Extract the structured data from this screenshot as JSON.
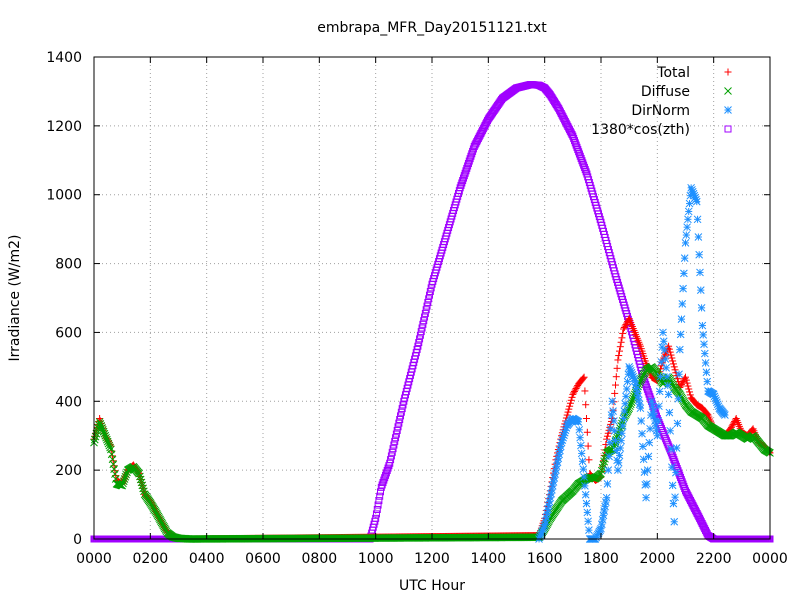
{
  "chart_data": {
    "type": "scatter",
    "title": "embrapa_MFR_Day20151121.txt",
    "xlabel": "UTC Hour",
    "ylabel": "Irradiance (W/m2)",
    "xlim": [
      0,
      24
    ],
    "ylim": [
      0,
      1400
    ],
    "x_ticks": [
      {
        "value": 0,
        "label": "0000"
      },
      {
        "value": 2,
        "label": "0200"
      },
      {
        "value": 4,
        "label": "0400"
      },
      {
        "value": 6,
        "label": "0600"
      },
      {
        "value": 8,
        "label": "0800"
      },
      {
        "value": 10,
        "label": "1000"
      },
      {
        "value": 12,
        "label": "1200"
      },
      {
        "value": 14,
        "label": "1400"
      },
      {
        "value": 16,
        "label": "1600"
      },
      {
        "value": 18,
        "label": "1800"
      },
      {
        "value": 20,
        "label": "2000"
      },
      {
        "value": 22,
        "label": "2200"
      },
      {
        "value": 24,
        "label": "0000"
      }
    ],
    "y_ticks": [
      0,
      200,
      400,
      600,
      800,
      1000,
      1200,
      1400
    ],
    "grid": true,
    "legend_position": "top-right",
    "series": [
      {
        "name": "Total",
        "marker": "plus",
        "color": "#ff0000",
        "x": [
          0.0,
          0.2,
          0.4,
          0.6,
          0.8,
          1.0,
          1.2,
          1.4,
          1.6,
          1.8,
          2.0,
          2.2,
          2.4,
          2.6,
          2.8,
          3.0,
          3.2,
          3.4,
          15.8,
          16.0,
          16.2,
          16.4,
          16.6,
          16.8,
          17.0,
          17.2,
          17.4,
          17.6,
          17.8,
          18.0,
          18.2,
          18.4,
          18.6,
          18.8,
          19.0,
          19.2,
          19.4,
          19.6,
          19.8,
          20.0,
          20.2,
          20.4,
          20.6,
          20.8,
          21.0,
          21.2,
          21.4,
          21.6,
          21.8,
          22.0,
          22.2,
          22.4,
          22.6,
          22.8,
          23.0,
          23.2,
          23.4,
          23.6,
          23.8,
          24.0
        ],
        "y": [
          290,
          350,
          300,
          270,
          170,
          160,
          200,
          215,
          190,
          130,
          110,
          80,
          50,
          20,
          8,
          3,
          1,
          0,
          10,
          60,
          140,
          230,
          300,
          360,
          420,
          450,
          470,
          190,
          170,
          180,
          290,
          350,
          520,
          610,
          640,
          600,
          560,
          510,
          470,
          460,
          520,
          560,
          500,
          440,
          470,
          410,
          390,
          380,
          360,
          320,
          310,
          300,
          320,
          350,
          310,
          300,
          320,
          280,
          270,
          250
        ]
      },
      {
        "name": "Diffuse",
        "marker": "x",
        "color": "#00a000",
        "x": [
          0.0,
          0.2,
          0.4,
          0.6,
          0.8,
          1.0,
          1.2,
          1.4,
          1.6,
          1.8,
          2.0,
          2.2,
          2.4,
          2.6,
          2.8,
          3.0,
          3.2,
          3.4,
          15.8,
          16.0,
          16.2,
          16.4,
          16.6,
          16.8,
          17.0,
          17.2,
          17.4,
          17.6,
          17.8,
          18.0,
          18.2,
          18.4,
          18.6,
          18.8,
          19.0,
          19.2,
          19.4,
          19.6,
          19.8,
          20.0,
          20.2,
          20.4,
          20.6,
          20.8,
          21.0,
          21.2,
          21.4,
          21.6,
          21.8,
          22.0,
          22.2,
          22.4,
          22.6,
          22.8,
          23.0,
          23.2,
          23.4,
          23.6,
          23.8,
          24.0
        ],
        "y": [
          280,
          340,
          300,
          260,
          160,
          155,
          200,
          210,
          190,
          130,
          105,
          78,
          48,
          18,
          6,
          2,
          1,
          0,
          5,
          30,
          60,
          85,
          110,
          125,
          140,
          160,
          170,
          180,
          175,
          190,
          250,
          260,
          300,
          350,
          380,
          420,
          460,
          490,
          500,
          480,
          450,
          470,
          440,
          420,
          390,
          370,
          360,
          350,
          330,
          320,
          310,
          300,
          300,
          310,
          300,
          290,
          300,
          280,
          260,
          250
        ]
      },
      {
        "name": "DirNorm",
        "marker": "star",
        "color": "#1e90ff",
        "x": [
          15.8,
          16.0,
          16.2,
          16.4,
          16.6,
          16.8,
          17.0,
          17.2,
          17.4,
          17.6,
          17.8,
          18.0,
          18.2,
          18.4,
          18.6,
          18.8,
          19.0,
          19.2,
          19.4,
          19.6,
          19.8,
          20.0,
          20.2,
          20.4,
          20.6,
          20.8,
          21.0,
          21.2,
          21.4,
          21.6,
          21.8,
          22.0,
          22.2,
          22.4
        ],
        "y": [
          0,
          40,
          120,
          200,
          280,
          330,
          350,
          340,
          180,
          0,
          0,
          30,
          120,
          400,
          200,
          350,
          500,
          460,
          380,
          120,
          400,
          300,
          600,
          420,
          50,
          550,
          860,
          1020,
          980,
          620,
          430,
          420,
          380,
          360
        ]
      },
      {
        "name": "1380*cos(zth)",
        "marker": "square",
        "color": "#a000ff",
        "x": [
          0,
          0.5,
          1,
          1.5,
          2,
          2.5,
          3,
          3.5,
          4,
          4.5,
          5,
          5.5,
          6,
          6.5,
          7,
          7.5,
          8,
          8.5,
          9,
          9.5,
          9.8,
          10.0,
          10.2,
          10.5,
          11.0,
          11.5,
          12.0,
          12.5,
          13.0,
          13.5,
          14.0,
          14.5,
          15.0,
          15.5,
          15.8,
          16.0,
          16.2,
          16.5,
          17.0,
          17.5,
          18.0,
          18.5,
          19.0,
          19.5,
          20.0,
          20.5,
          21.0,
          21.5,
          21.8,
          22.0,
          22.2,
          22.5,
          23,
          23.5,
          24
        ],
        "y": [
          0,
          0,
          0,
          0,
          0,
          0,
          0,
          0,
          0,
          0,
          0,
          0,
          0,
          0,
          0,
          0,
          0,
          0,
          0,
          0,
          0,
          60,
          150,
          220,
          400,
          560,
          740,
          880,
          1020,
          1140,
          1220,
          1280,
          1310,
          1320,
          1318,
          1310,
          1290,
          1250,
          1170,
          1060,
          920,
          770,
          630,
          470,
          350,
          250,
          140,
          60,
          10,
          0,
          0,
          0,
          0,
          0,
          0
        ]
      }
    ]
  }
}
